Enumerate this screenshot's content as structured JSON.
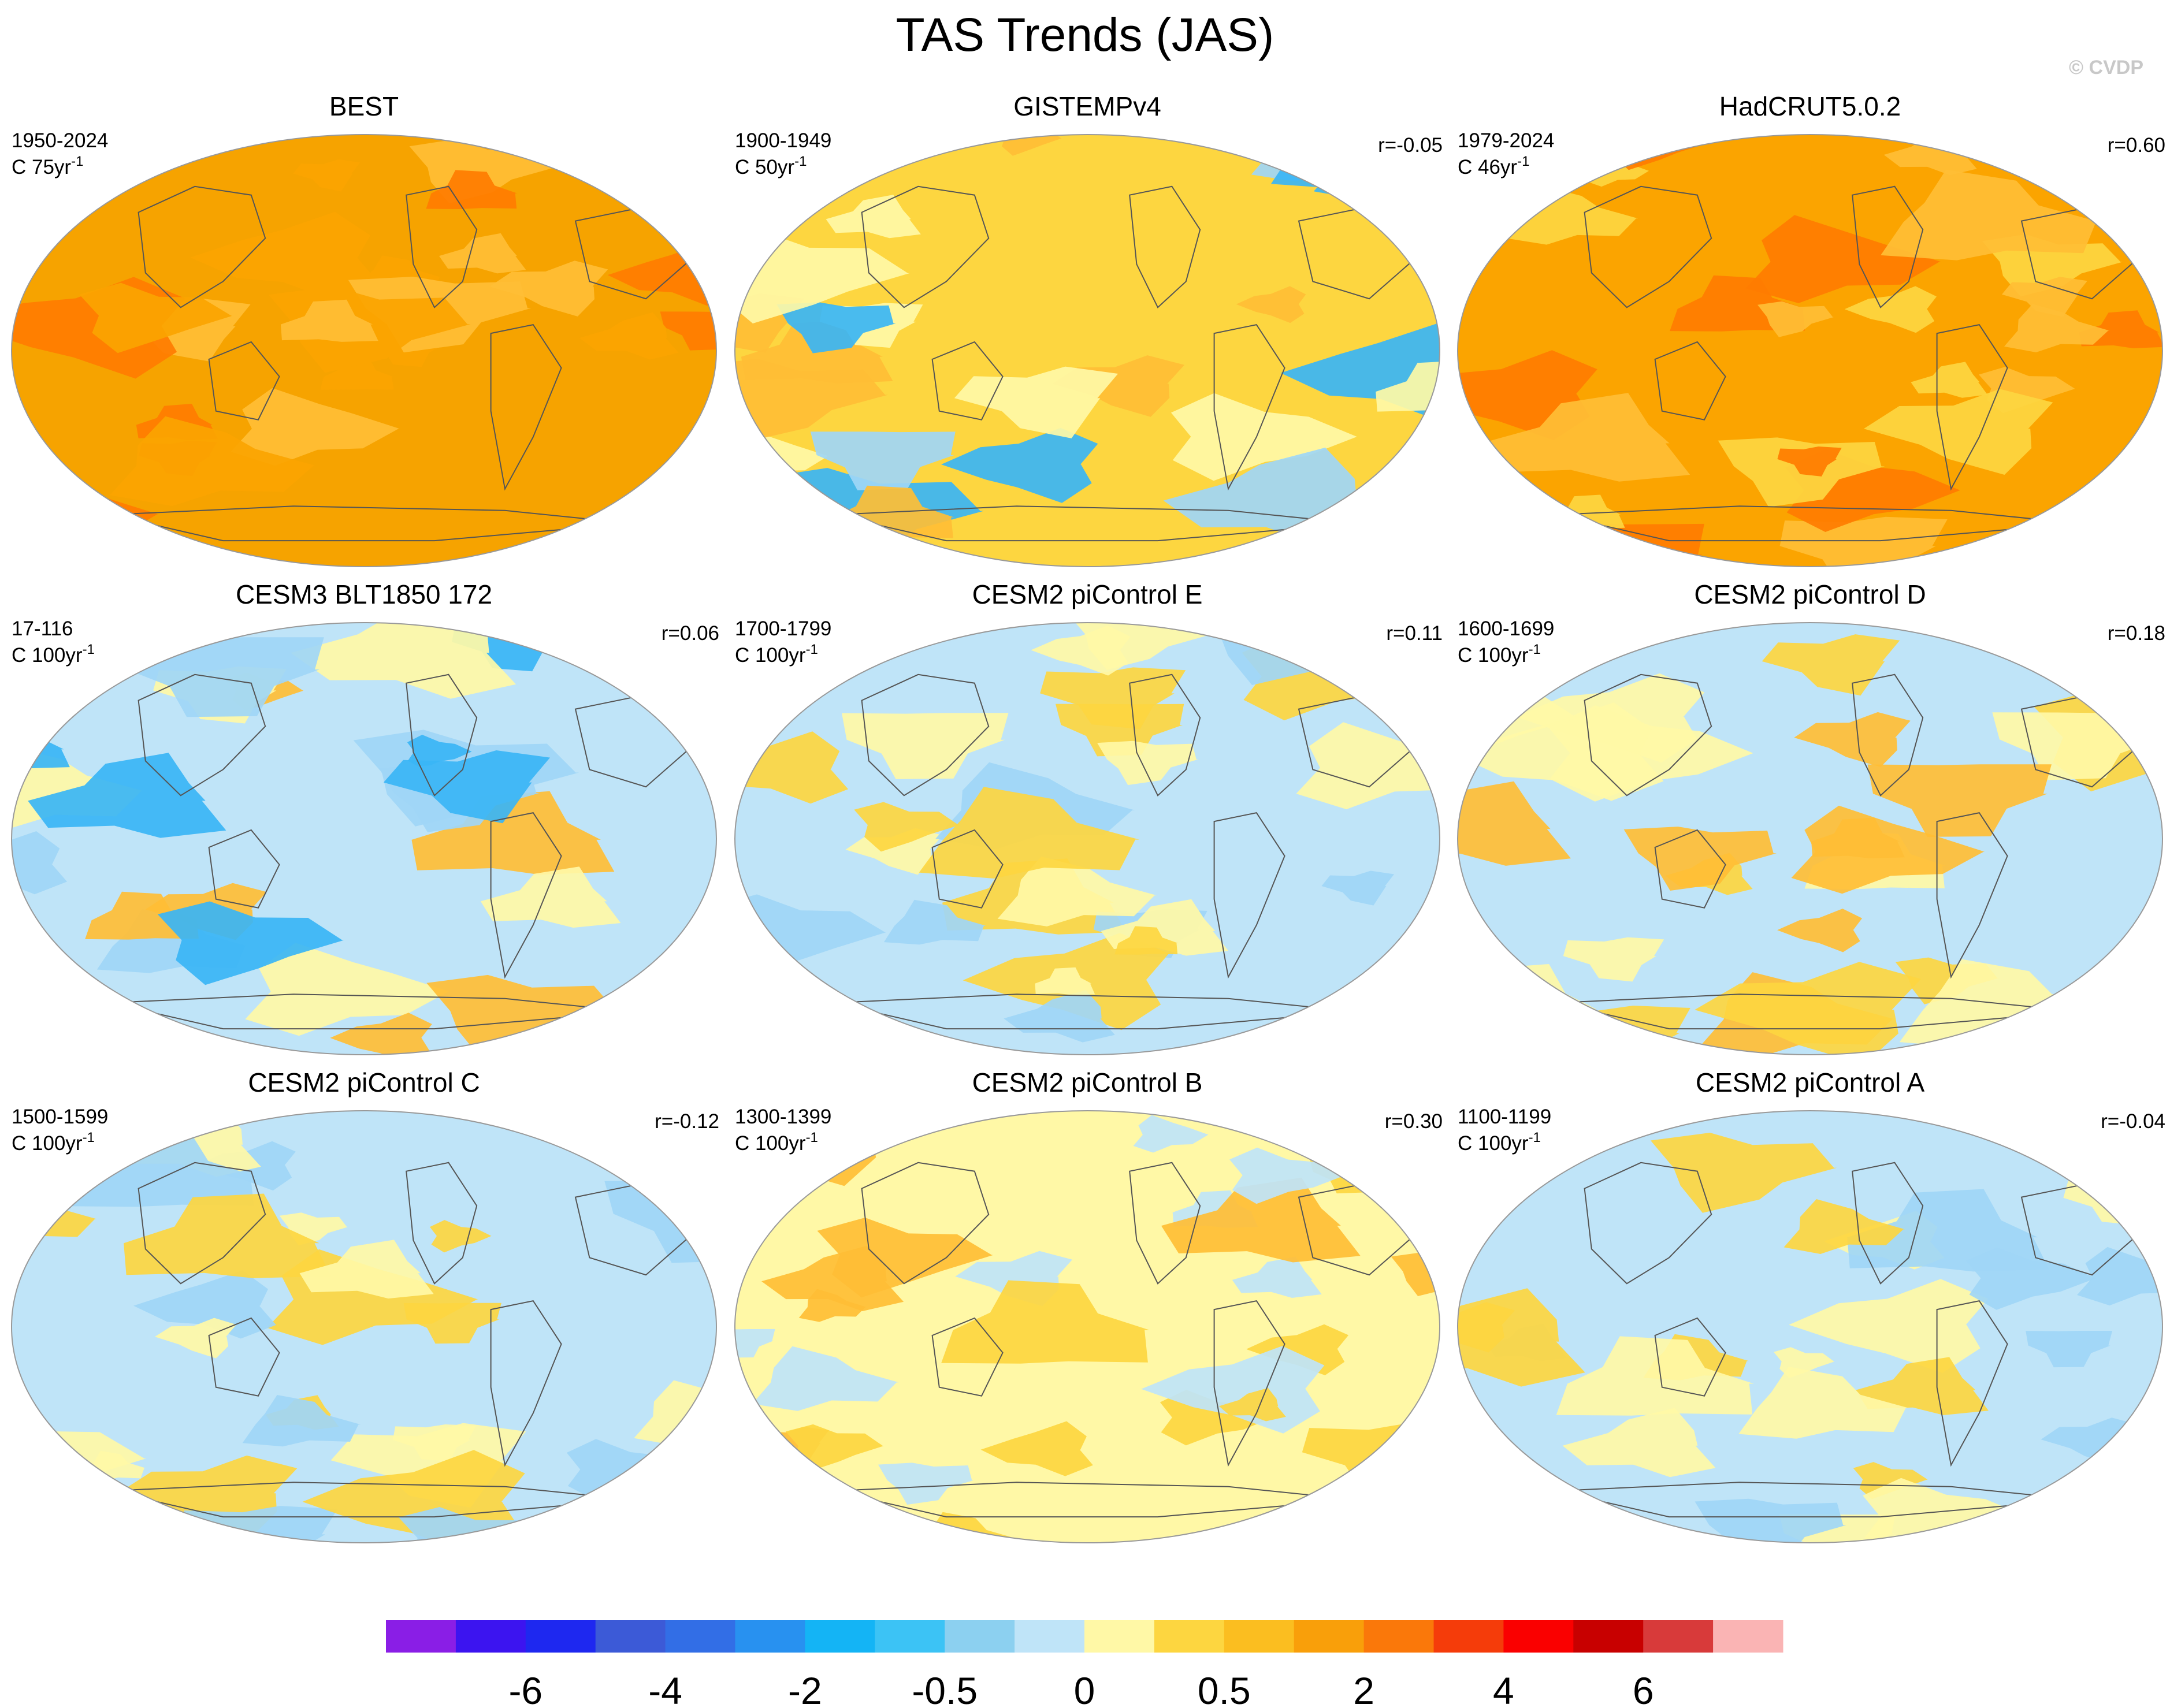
{
  "title": "TAS Trends (JAS)",
  "watermark": "© CVDP",
  "chart_data": {
    "type": "heatmap",
    "projection": "Robinson (global map panels, continents outlined)",
    "variable": "TAS",
    "season": "JAS",
    "panels": [
      {
        "name": "BEST",
        "period": "1950-2024",
        "units_prefix": "C",
        "trend_span": "75",
        "r": "",
        "dominant_bin": "1 to 2",
        "anomaly": "warm",
        "colors": [
          "#f6a300",
          "#fba400",
          "#ffbe35",
          "#ff7c00"
        ]
      },
      {
        "name": "GISTEMPv4",
        "period": "1900-1949",
        "units_prefix": "C",
        "trend_span": "50",
        "r": "r=-0.05",
        "dominant_bin": "0.5 to 1",
        "anomaly": "mixed",
        "colors": [
          "#fdd640",
          "#ffbe35",
          "#fff8a6",
          "#9fd6f6",
          "#3ab5f5"
        ]
      },
      {
        "name": "HadCRUT5.0.2",
        "period": "1979-2024",
        "units_prefix": "C",
        "trend_span": "46",
        "r": "r=0.60",
        "dominant_bin": "1 to 2",
        "anomaly": "warm",
        "colors": [
          "#fba400",
          "#ff7c00",
          "#ffbe35",
          "#fdd640"
        ]
      },
      {
        "name": "CESM3 BLT1850 172",
        "period": "17-116",
        "units_prefix": "C",
        "trend_span": "100",
        "r": "r=0.06",
        "dominant_bin": "-0.5 to 0",
        "anomaly": "cool",
        "colors": [
          "#bfe4f8",
          "#fff8a6",
          "#9fd6f6",
          "#ffbe35",
          "#3ab5f5"
        ]
      },
      {
        "name": "CESM2 piControl E",
        "period": "1700-1799",
        "units_prefix": "C",
        "trend_span": "100",
        "r": "r=0.11",
        "dominant_bin": "-0.5 to 0",
        "anomaly": "mixed",
        "colors": [
          "#bfe4f8",
          "#fff8a6",
          "#fdd640",
          "#9fd6f6"
        ]
      },
      {
        "name": "CESM2 piControl D",
        "period": "1600-1699",
        "units_prefix": "C",
        "trend_span": "100",
        "r": "r=0.18",
        "dominant_bin": "-0.5 to 0",
        "anomaly": "mixed",
        "colors": [
          "#bfe4f8",
          "#fff8a6",
          "#fdd640",
          "#ffbe35"
        ]
      },
      {
        "name": "CESM2 piControl C",
        "period": "1500-1599",
        "units_prefix": "C",
        "trend_span": "100",
        "r": "r=-0.12",
        "dominant_bin": "-0.5 to 0",
        "anomaly": "mixed",
        "colors": [
          "#bfe4f8",
          "#fff8a6",
          "#fdd640",
          "#9fd6f6"
        ]
      },
      {
        "name": "CESM2 piControl B",
        "period": "1300-1399",
        "units_prefix": "C",
        "trend_span": "100",
        "r": "r=0.30",
        "dominant_bin": "0 to 0.5",
        "anomaly": "mixed",
        "colors": [
          "#fff8a6",
          "#bfe4f8",
          "#fdd640",
          "#ffbe35"
        ]
      },
      {
        "name": "CESM2 piControl A",
        "period": "1100-1199",
        "units_prefix": "C",
        "trend_span": "100",
        "r": "r=-0.04",
        "dominant_bin": "-0.5 to 0",
        "anomaly": "mixed",
        "colors": [
          "#bfe4f8",
          "#fff8a6",
          "#fdd640",
          "#9fd6f6"
        ]
      }
    ],
    "colorbar": {
      "colors": [
        "#8a1ee6",
        "#3c14f0",
        "#1e28f0",
        "#3c5ad7",
        "#326ee6",
        "#2891f0",
        "#14b4f5",
        "#3cc3f5",
        "#8cd0f0",
        "#bfe4f8",
        "#fff8a6",
        "#fdd640",
        "#fbbe20",
        "#f99f0a",
        "#fa780a",
        "#f53c0a",
        "#fa0000",
        "#c80000",
        "#d83a3a",
        "#fab4b4"
      ],
      "tick_labels": [
        "-6",
        "-4",
        "-2",
        "-0.5",
        "0",
        "0.5",
        "2",
        "4",
        "6"
      ],
      "tick_edges": [
        2,
        4,
        6,
        8,
        10,
        12,
        14,
        16,
        18
      ]
    }
  }
}
